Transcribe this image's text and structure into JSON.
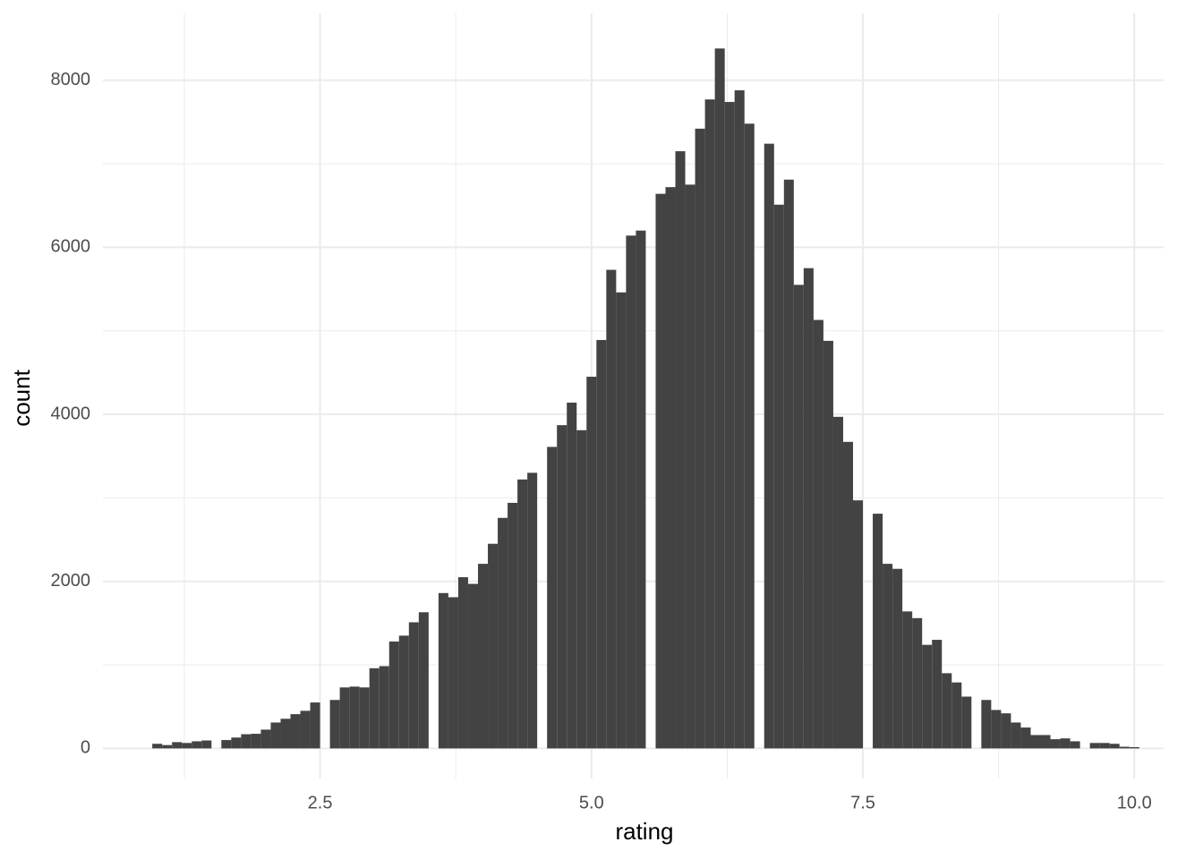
{
  "chart_data": {
    "type": "histogram",
    "x_label": "rating",
    "y_label": "count",
    "color": "#434343",
    "grid": true,
    "bins": [
      0.9545,
      1.0455,
      1.1364,
      1.2273,
      1.3182,
      1.4091,
      1.5,
      1.5909,
      1.6818,
      1.7727,
      1.8636,
      1.9545,
      2.0455,
      2.1364,
      2.2273,
      2.3182,
      2.4091,
      2.5,
      2.5909,
      2.6818,
      2.7727,
      2.8636,
      2.9545,
      3.0455,
      3.1364,
      3.2273,
      3.3182,
      3.4091,
      3.5,
      3.5909,
      3.6818,
      3.7727,
      3.8636,
      3.9545,
      4.0455,
      4.1364,
      4.2273,
      4.3182,
      4.4091,
      4.5,
      4.5909,
      4.6818,
      4.7727,
      4.8636,
      4.9545,
      5.0455,
      5.1364,
      5.2273,
      5.3182,
      5.4091,
      5.5,
      5.5909,
      5.6818,
      5.7727,
      5.8636,
      5.9545,
      6.0455,
      6.1364,
      6.2273,
      6.3182,
      6.4091,
      6.5,
      6.5909,
      6.6818,
      6.7727,
      6.8636,
      6.9545,
      7.0455,
      7.1364,
      7.2273,
      7.3182,
      7.4091,
      7.5,
      7.5909,
      7.6818,
      7.7727,
      7.8636,
      7.9545,
      8.0455,
      8.1364,
      8.2273,
      8.3182,
      8.4091,
      8.5,
      8.5909,
      8.6818,
      8.7727,
      8.8636,
      8.9545,
      9.0455,
      9.1364,
      9.2273,
      9.3182,
      9.4091,
      9.5,
      9.5909,
      9.6818,
      9.7727,
      9.8636,
      9.9545,
      10.0455
    ],
    "values": [
      55,
      40,
      75,
      65,
      85,
      95,
      0,
      100,
      130,
      170,
      175,
      225,
      310,
      355,
      410,
      450,
      550,
      0,
      580,
      730,
      740,
      730,
      960,
      985,
      1280,
      1350,
      1510,
      1630,
      0,
      1860,
      1810,
      2050,
      1970,
      2210,
      2450,
      2760,
      2940,
      3220,
      3300,
      0,
      3610,
      3870,
      4140,
      3810,
      4450,
      4890,
      5730,
      5460,
      6140,
      6200,
      0,
      6640,
      6720,
      7150,
      6750,
      7420,
      7770,
      8380,
      7740,
      7880,
      7480,
      0,
      7240,
      6510,
      6810,
      5550,
      5750,
      5130,
      4880,
      3970,
      3670,
      2970,
      0,
      2810,
      2210,
      2150,
      1640,
      1560,
      1240,
      1300,
      900,
      790,
      620,
      0,
      580,
      460,
      420,
      310,
      250,
      160,
      160,
      110,
      120,
      85,
      0,
      65,
      65,
      55,
      20,
      15
    ],
    "xlim": [
      0.5,
      10.27
    ],
    "ylim": [
      -360,
      8800
    ],
    "xticks": [
      2.5,
      {
        "value": 5,
        "label": "5.0"
      },
      7.5,
      {
        "value": 10,
        "label": "10.0"
      }
    ],
    "yticks": [
      0,
      2000,
      4000,
      6000,
      8000
    ],
    "x_minor_ticks": [
      1.25,
      3.75,
      6.25,
      8.75
    ],
    "y_minor_ticks": [
      1000,
      3000,
      5000,
      7000
    ]
  }
}
